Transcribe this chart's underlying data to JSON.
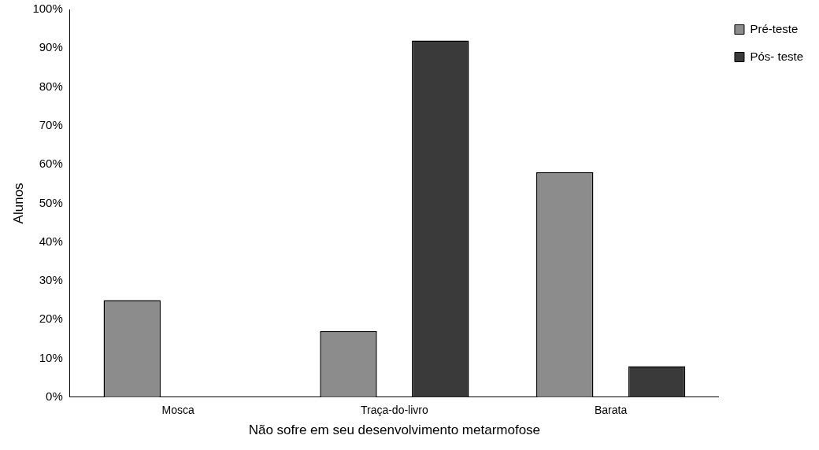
{
  "chart_data": {
    "type": "bar",
    "xlabel": "Não sofre em seu desenvolvimento metarmofose",
    "ylabel": "Alunos",
    "categories": [
      "Mosca",
      "Traça-do-livro",
      "Barata"
    ],
    "series": [
      {
        "name": "Pré-teste",
        "color": "#8c8c8c",
        "values": [
          25,
          17,
          58
        ]
      },
      {
        "name": "Pós- teste",
        "color": "#3a3a3a",
        "values": [
          0,
          92,
          8
        ]
      }
    ],
    "ylim": [
      0,
      100
    ],
    "yticks": [
      {
        "value": 0,
        "label": "0%"
      },
      {
        "value": 10,
        "label": "10%"
      },
      {
        "value": 20,
        "label": "20%"
      },
      {
        "value": 30,
        "label": "30%"
      },
      {
        "value": 40,
        "label": "40%"
      },
      {
        "value": 50,
        "label": "50%"
      },
      {
        "value": 60,
        "label": "60%"
      },
      {
        "value": 70,
        "label": "70%"
      },
      {
        "value": 80,
        "label": "80%"
      },
      {
        "value": 90,
        "label": "90%"
      },
      {
        "value": 100,
        "label": "100%"
      }
    ],
    "grid": false,
    "legend": "top right"
  }
}
